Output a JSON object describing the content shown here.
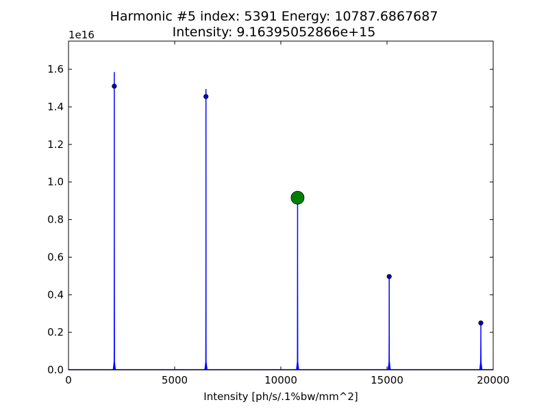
{
  "chart_data": {
    "type": "line",
    "title_line1": "Harmonic #5 index: 5391  Energy: 10787.6867687",
    "title_line2": "Intensity: 9.16395052866e+15",
    "xlabel": "Intensity [ph/s/.1%bw/mm^2]",
    "ylabel": "",
    "y_offset_label": "1e16",
    "xlim": [
      0,
      20000
    ],
    "ylim": [
      0,
      1.75
    ],
    "y_scale_factor": 1e+16,
    "xticks": [
      0,
      5000,
      10000,
      15000,
      20000
    ],
    "xtick_labels": [
      "0",
      "5000",
      "10000",
      "15000",
      "20000"
    ],
    "yticks": [
      0.0,
      0.2,
      0.4,
      0.6,
      0.8,
      1.0,
      1.2,
      1.4,
      1.6
    ],
    "ytick_labels": [
      "0.0",
      "0.2",
      "0.4",
      "0.6",
      "0.8",
      "1.0",
      "1.2",
      "1.4",
      "1.6"
    ],
    "grid": false,
    "line_color": "#0000ff",
    "marker_color": "#0000cc",
    "highlight_color": "#008000",
    "peaks": [
      {
        "x": 2157,
        "peak_y": 1.585,
        "marker_y": 1.51
      },
      {
        "x": 6473,
        "peak_y": 1.495,
        "marker_y": 1.455
      },
      {
        "x": 10788,
        "peak_y": 0.93,
        "marker_y": 0.916
      },
      {
        "x": 15103,
        "peak_y": 0.5,
        "marker_y": 0.497
      },
      {
        "x": 19418,
        "peak_y": 0.25,
        "marker_y": 0.25
      }
    ],
    "highlighted": {
      "x": 10787.6867687,
      "y": 0.916395052866
    }
  }
}
